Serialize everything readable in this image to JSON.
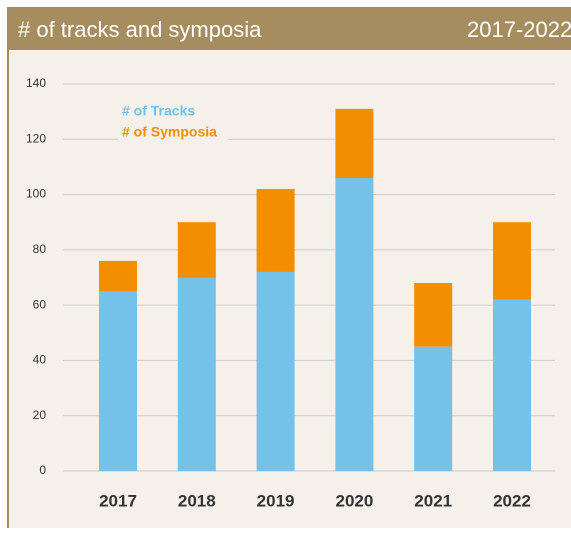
{
  "chart_data": {
    "type": "stacked-bar",
    "title": "# of tracks and symposia",
    "subtitle": "2017-2022",
    "categories": [
      "2017",
      "2018",
      "2019",
      "2020",
      "2021",
      "2022"
    ],
    "series": [
      {
        "name": "# of Tracks",
        "color": "#74c1ea",
        "values": [
          65,
          70,
          72,
          106,
          45,
          62
        ]
      },
      {
        "name": "# of Symposia",
        "color": "#f28e00",
        "values": [
          11,
          20,
          30,
          25,
          23,
          28
        ]
      }
    ],
    "ylim": [
      0,
      140
    ],
    "yticks": [
      0,
      20,
      40,
      60,
      80,
      100,
      120,
      140
    ],
    "grid": true,
    "legend": "upper-left"
  }
}
